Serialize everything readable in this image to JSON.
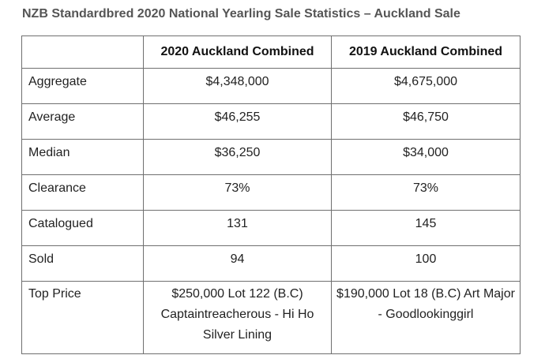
{
  "title": "NZB Standardbred 2020 National Yearling Sale Statistics – Auckland Sale",
  "table": {
    "headers": [
      "",
      "2020 Auckland Combined",
      "2019 Auckland Combined"
    ],
    "rows": [
      {
        "label": "Aggregate",
        "v2020": "$4,348,000",
        "v2019": "$4,675,000"
      },
      {
        "label": "Average",
        "v2020": "$46,255",
        "v2019": "$46,750"
      },
      {
        "label": "Median",
        "v2020": "$36,250",
        "v2019": "$34,000"
      },
      {
        "label": "Clearance",
        "v2020": "73%",
        "v2019": "73%"
      },
      {
        "label": "Catalogued",
        "v2020": "131",
        "v2019": "145"
      },
      {
        "label": "Sold",
        "v2020": "94",
        "v2019": "100"
      },
      {
        "label": "Top Price",
        "v2020": "$250,000 Lot 122 (B.C) Captaintreacherous - Hi Ho Silver Lining",
        "v2019": "$190,000 Lot 18 (B.C) Art Major - Goodlookinggirl"
      }
    ]
  }
}
